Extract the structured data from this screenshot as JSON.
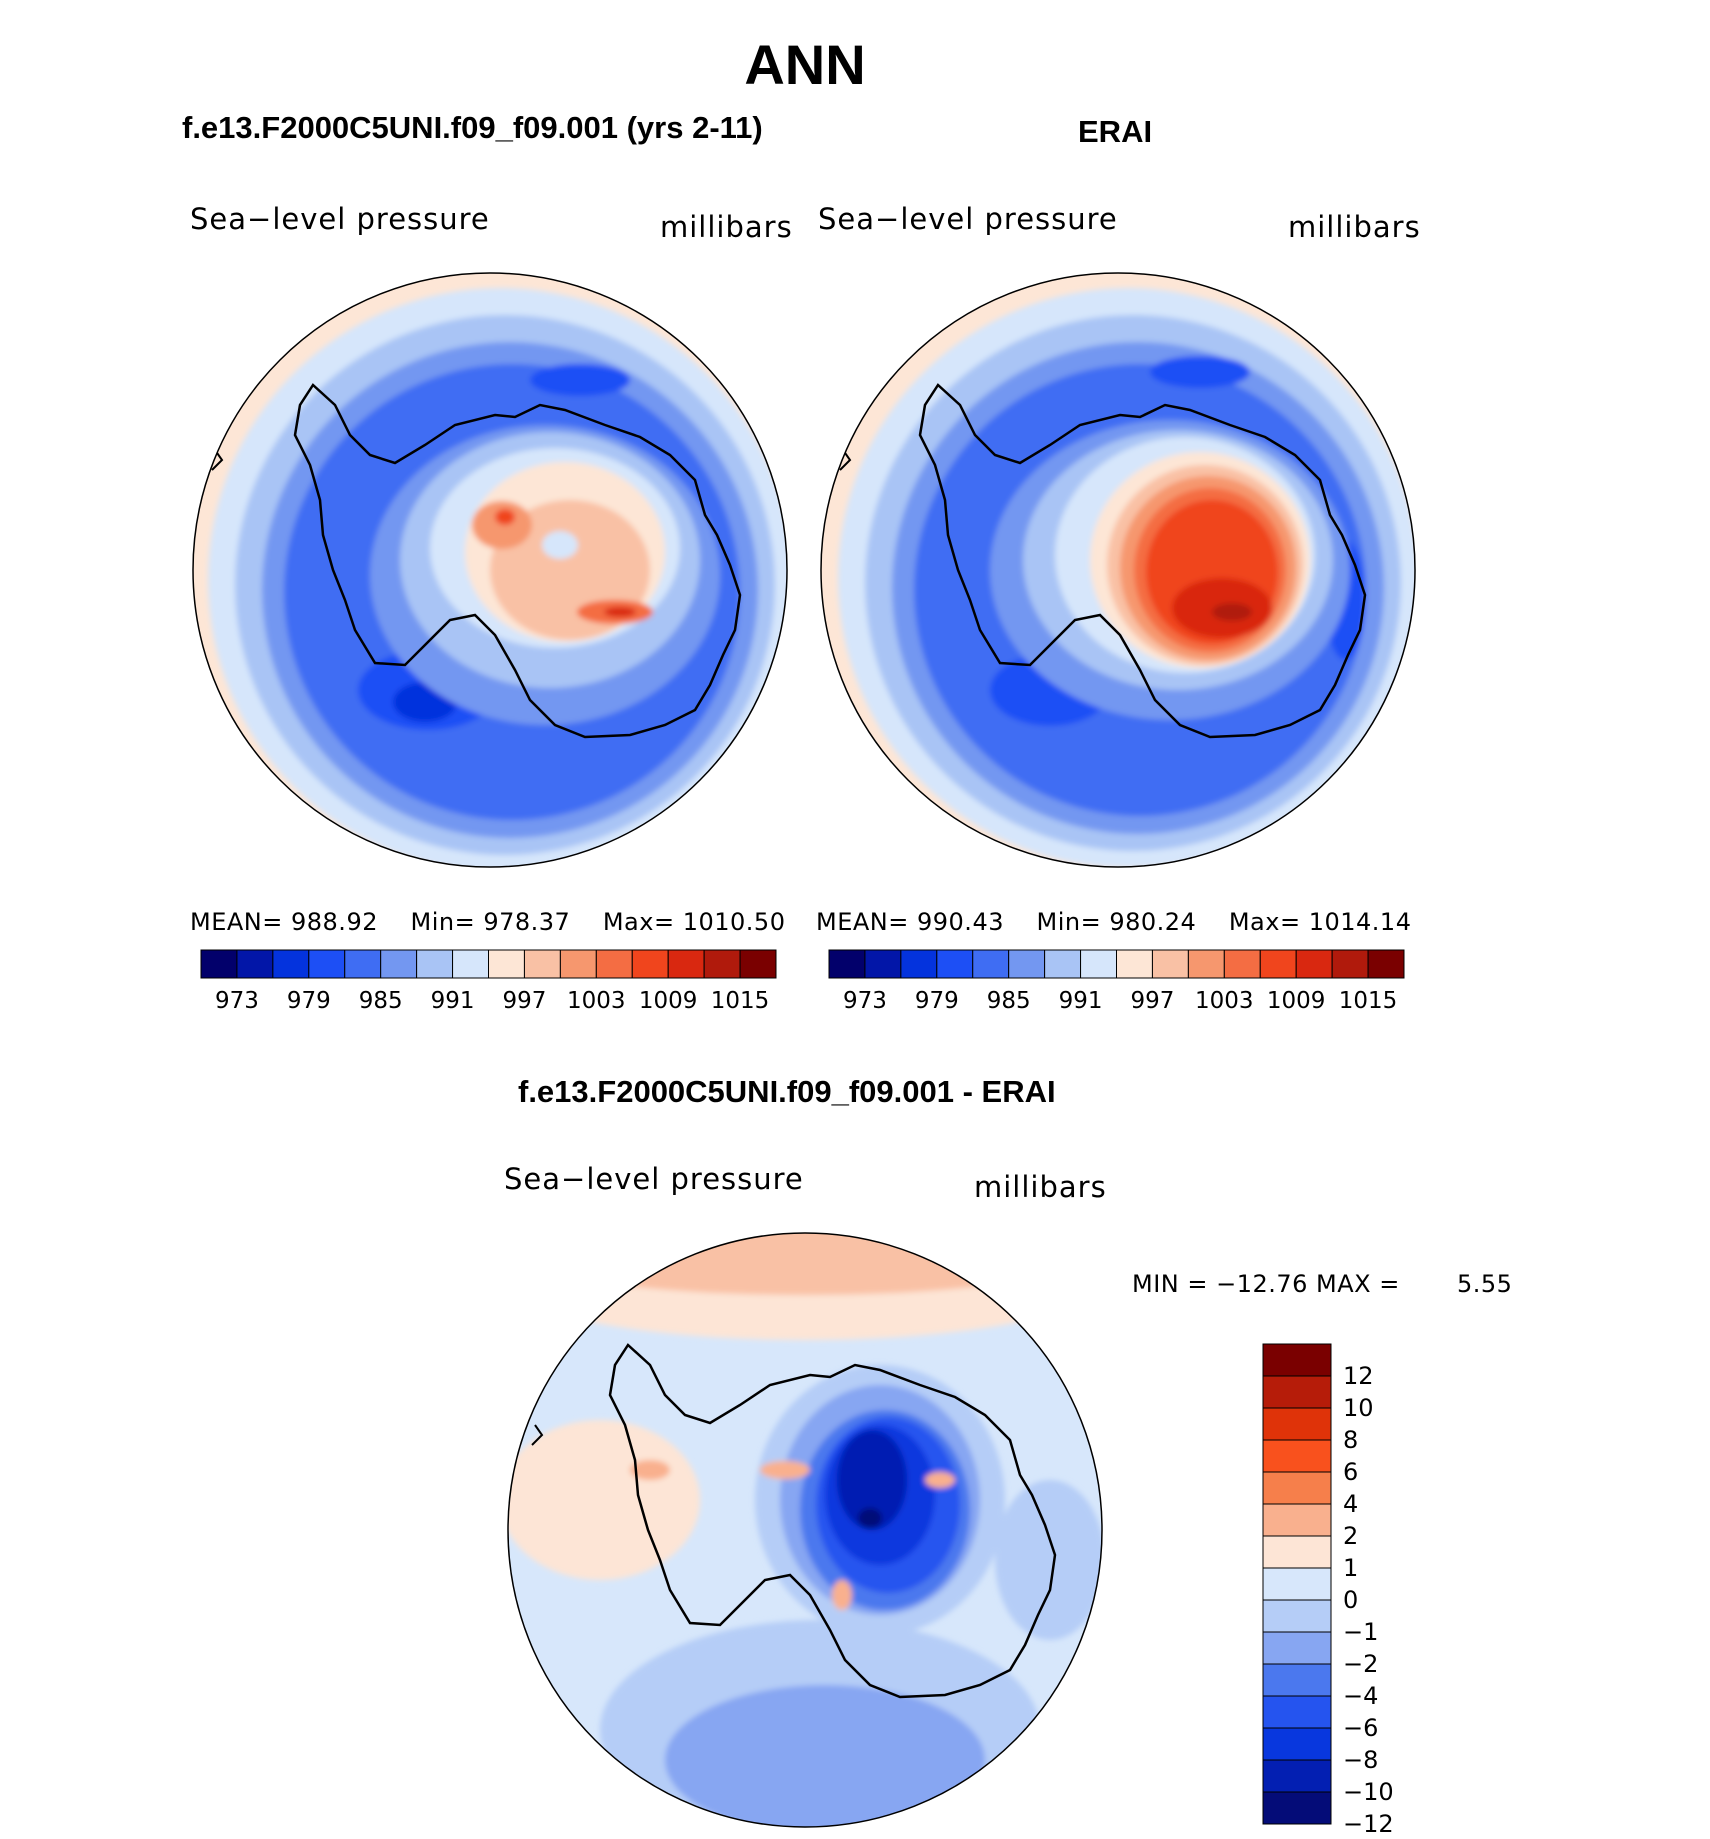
{
  "title": "ANN",
  "panels": [
    {
      "id": "model",
      "heading": "f.e13.F2000C5UNI.f09_f09.001 (yrs 2-11)",
      "field": "Sea−level pressure",
      "units": "millibars",
      "stats": {
        "mean_label": "MEAN=",
        "mean": "988.92",
        "min_label": "Min=",
        "min": "978.37",
        "max_label": "Max=",
        "max": "1010.50"
      }
    },
    {
      "id": "obs",
      "heading": "ERAI",
      "field": "Sea−level pressure",
      "units": "millibars",
      "stats": {
        "mean_label": "MEAN=",
        "mean": "990.43",
        "min_label": "Min=",
        "min": "980.24",
        "max_label": "Max=",
        "max": "1014.14"
      }
    },
    {
      "id": "diff",
      "heading": "f.e13.F2000C5UNI.f09_f09.001 - ERAI",
      "field": "Sea−level pressure",
      "units": "millibars",
      "stats_text": "MIN = −12.76 MAX =",
      "stats_max": "5.55"
    }
  ],
  "abs_colorbar": {
    "colors": [
      "#02006b",
      "#0216a8",
      "#0433dd",
      "#1d4ff5",
      "#3f6df3",
      "#7397f1",
      "#a9c4f5",
      "#d6e6fb",
      "#fde6d6",
      "#f9c1a5",
      "#f6976e",
      "#f46d43",
      "#f0451d",
      "#d92810",
      "#b01a0c",
      "#7a0000"
    ],
    "labels": [
      "973",
      "979",
      "985",
      "991",
      "997",
      "1003",
      "1009",
      "1015"
    ]
  },
  "diff_colorbar": {
    "colors": [
      "#7a0000",
      "#b61c09",
      "#df3309",
      "#f9511d",
      "#f67f4b",
      "#f9b08e",
      "#fde5d6",
      "#d7e7fb",
      "#b5cdf7",
      "#87a6f2",
      "#4b78ee",
      "#2554ef",
      "#0837de",
      "#031fb2",
      "#040c78"
    ],
    "labels": [
      "12",
      "10",
      "8",
      "6",
      "4",
      "2",
      "1",
      "0",
      "−1",
      "−2",
      "−4",
      "−6",
      "−8",
      "−10",
      "−12"
    ]
  },
  "colors": {
    "edge": "#000000",
    "coast": "#000000"
  }
}
